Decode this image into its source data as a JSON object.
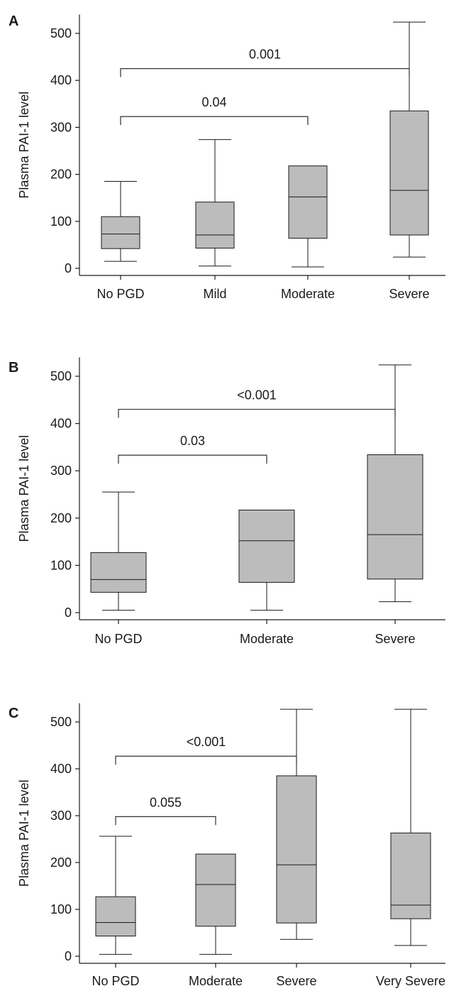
{
  "chart_data": [
    {
      "type": "box",
      "panel_label": "A",
      "ylabel": "Plasma PAI-1 level",
      "xlabel": "",
      "ylim": [
        0,
        540
      ],
      "yticks": [
        0,
        100,
        200,
        300,
        400,
        500
      ],
      "categories": [
        "No PGD",
        "Mild",
        "Moderate",
        "Severe"
      ],
      "boxes": [
        {
          "min": 15,
          "q1": 42,
          "median": 73,
          "q3": 110,
          "max": 185
        },
        {
          "min": 5,
          "q1": 43,
          "median": 71,
          "q3": 141,
          "max": 274
        },
        {
          "min": 3,
          "q1": 64,
          "median": 152,
          "q3": 218,
          "max": 218
        },
        {
          "min": 24,
          "q1": 71,
          "median": 166,
          "q3": 335,
          "max": 524
        }
      ],
      "comparisons": [
        {
          "from": "No PGD",
          "to": "Severe",
          "label": "0.001",
          "y": 425
        },
        {
          "from": "No PGD",
          "to": "Moderate",
          "label": "0.04",
          "y": 323
        }
      ],
      "box_color": "#bcbcbc"
    },
    {
      "type": "box",
      "panel_label": "B",
      "ylabel": "Plasma PAI-1 level",
      "xlabel": "",
      "ylim": [
        0,
        540
      ],
      "yticks": [
        0,
        100,
        200,
        300,
        400,
        500
      ],
      "categories": [
        "No PGD",
        "Moderate",
        "Severe"
      ],
      "boxes": [
        {
          "min": 5,
          "q1": 43,
          "median": 70,
          "q3": 127,
          "max": 255
        },
        {
          "min": 5,
          "q1": 64,
          "median": 152,
          "q3": 217,
          "max": 217
        },
        {
          "min": 23,
          "q1": 71,
          "median": 165,
          "q3": 334,
          "max": 524
        }
      ],
      "comparisons": [
        {
          "from": "No PGD",
          "to": "Severe",
          "label": "<0.001",
          "y": 430
        },
        {
          "from": "No PGD",
          "to": "Moderate",
          "label": "0.03",
          "y": 333
        }
      ],
      "box_color": "#bcbcbc"
    },
    {
      "type": "box",
      "panel_label": "C",
      "ylabel": "Plasma PAI-1 level",
      "xlabel": "",
      "ylim": [
        0,
        540
      ],
      "yticks": [
        0,
        100,
        200,
        300,
        400,
        500
      ],
      "categories": [
        "No PGD",
        "Moderate",
        "Severe",
        "Very Severe"
      ],
      "boxes": [
        {
          "min": 4,
          "q1": 43,
          "median": 72,
          "q3": 127,
          "max": 256
        },
        {
          "min": 4,
          "q1": 64,
          "median": 153,
          "q3": 218,
          "max": 218
        },
        {
          "min": 36,
          "q1": 71,
          "median": 195,
          "q3": 385,
          "max": 527
        },
        {
          "min": 23,
          "q1": 80,
          "median": 109,
          "q3": 263,
          "max": 527
        }
      ],
      "comparisons": [
        {
          "from": "No PGD",
          "to": "Severe",
          "label": "<0.001",
          "y": 427
        },
        {
          "from": "No PGD",
          "to": "Moderate",
          "label": "0.055",
          "y": 298
        }
      ],
      "box_color": "#bcbcbc"
    }
  ]
}
